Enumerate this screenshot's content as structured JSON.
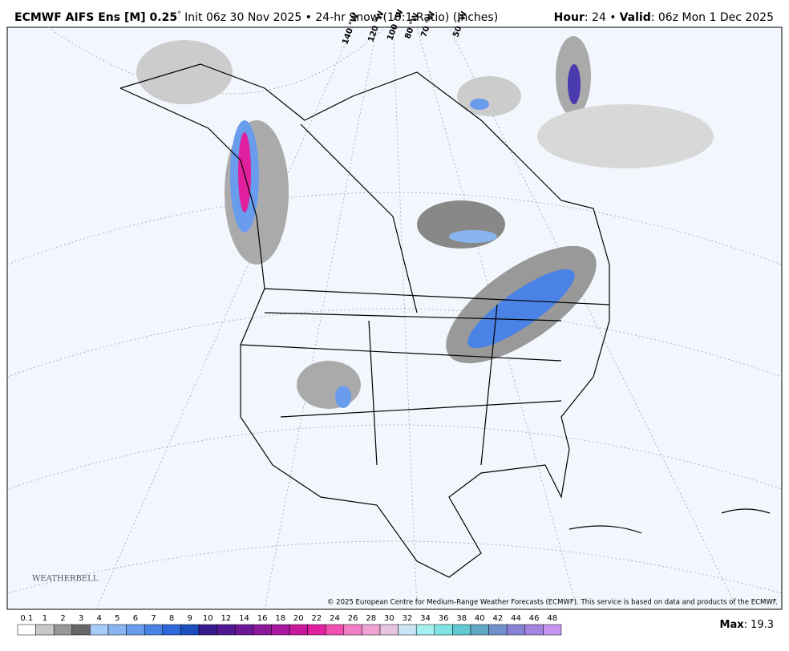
{
  "header": {
    "title": "ECMWF AIFS Ens [M] 0.25",
    "degree": "°",
    "subtitle": "Init 06z 30 Nov 2025 • 24-hr Snow (10:1 Ratio) (Inches)",
    "hour_label": "Hour",
    "hour_value": ": 24 •",
    "valid_label": "Valid",
    "valid_value": ": 06z Mon 1 Dec 2025"
  },
  "map": {
    "longitude_labels": [
      "140 °W",
      "120 °W",
      "100 °W",
      "80 °W",
      "70 °W",
      "50 °W"
    ],
    "logo": "WEATHERBELL",
    "copyright": "© 2025 European Centre for Medium-Range Weather Forecasts (ECMWF). This service is based on data and products of the ECMWF."
  },
  "legend": {
    "labels": [
      "0.1",
      "1",
      "2",
      "3",
      "4",
      "5",
      "6",
      "7",
      "8",
      "9",
      "10",
      "12",
      "14",
      "16",
      "18",
      "20",
      "22",
      "24",
      "26",
      "28",
      "30",
      "32",
      "34",
      "36",
      "38",
      "40",
      "42",
      "44",
      "46",
      "48"
    ],
    "colors": [
      "#ffffff",
      "#c8c8c8",
      "#989898",
      "#686868",
      "#a8ccf8",
      "#88b4f0",
      "#6a9cee",
      "#4a82e6",
      "#2e68d8",
      "#1c4ec0",
      "#3a1a8a",
      "#501890",
      "#6c1896",
      "#8c189a",
      "#aa189e",
      "#c8189c",
      "#e0209e",
      "#f050b0",
      "#f07ec4",
      "#f0a4d4",
      "#e8c4e4",
      "#cce4f4",
      "#a4f0f0",
      "#80e4e4",
      "#60c8d0",
      "#62a8c4",
      "#7090cc",
      "#8882d6",
      "#a684e2",
      "#c494f0"
    ],
    "max_label": "Max",
    "max_separator": ":",
    "max_value": 19.3
  }
}
